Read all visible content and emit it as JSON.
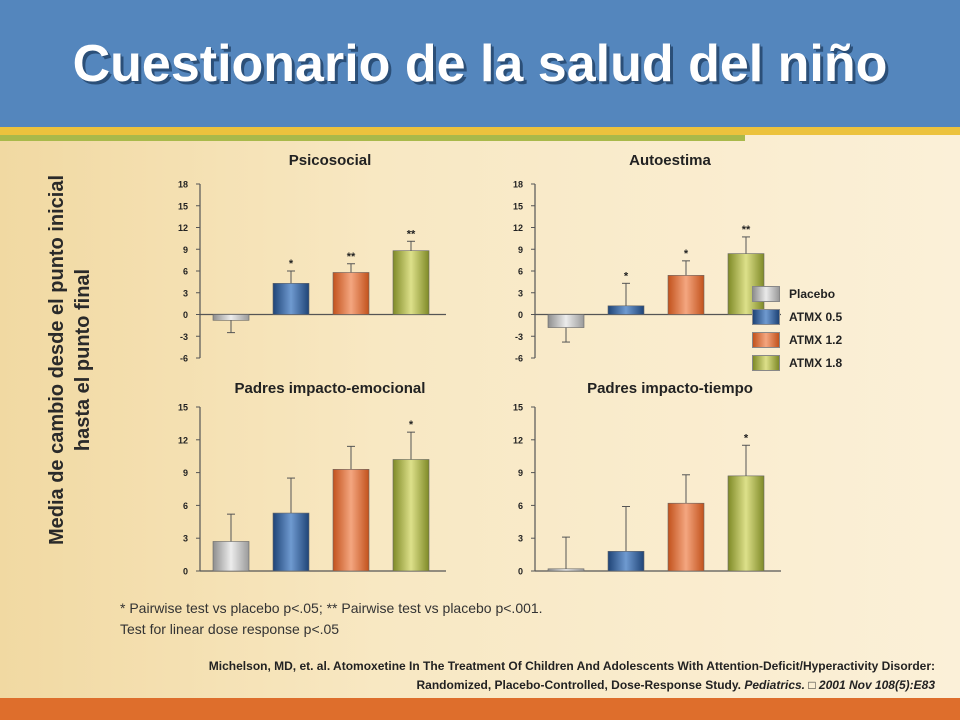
{
  "title": "Cuestionario de la salud del niño",
  "y_label_line1": "Media de cambio desde el punto inicial",
  "y_label_line2": "hasta el punto final",
  "legend": [
    {
      "label": "Placebo",
      "color": "#b9b9b9"
    },
    {
      "label": "ATMX 0.5",
      "color": "#2f5f9a"
    },
    {
      "label": "ATMX 1.2",
      "color": "#e0703a"
    },
    {
      "label": "ATMX 1.8",
      "color": "#a7b247"
    }
  ],
  "chart_data": [
    {
      "type": "bar",
      "title": "Psicosocial",
      "series_names": [
        "Placebo",
        "ATMX 0.5",
        "ATMX 1.2",
        "ATMX 1.8"
      ],
      "values": [
        -0.8,
        4.3,
        5.8,
        8.8
      ],
      "error_upper": [
        -2.5,
        6,
        7,
        10.1
      ],
      "significance": [
        "",
        "*",
        "**",
        "**"
      ],
      "yticks": [
        "18",
        "15",
        "12",
        "9",
        "6",
        "3",
        "0",
        "-3",
        "-6"
      ],
      "ylim": [
        -6,
        18
      ]
    },
    {
      "type": "bar",
      "title": "Autoestima",
      "series_names": [
        "Placebo",
        "ATMX 0.5",
        "ATMX 1.2",
        "ATMX 1.8"
      ],
      "values": [
        -1.8,
        1.2,
        5.4,
        8.4
      ],
      "error_upper": [
        -3.8,
        4.3,
        7.4,
        10.7
      ],
      "significance": [
        "",
        "*",
        "*",
        "**"
      ],
      "yticks": [
        "18",
        "15",
        "12",
        "9",
        "6",
        "3",
        "0",
        "-3",
        "-6"
      ],
      "ylim": [
        -6,
        18
      ]
    },
    {
      "type": "bar",
      "title": "Padres impacto-emocional",
      "series_names": [
        "Placebo",
        "ATMX 0.5",
        "ATMX 1.2",
        "ATMX 1.8"
      ],
      "values": [
        2.7,
        5.3,
        9.3,
        10.2
      ],
      "error_upper": [
        5.2,
        8.5,
        11.4,
        12.7
      ],
      "significance": [
        "",
        "",
        "",
        "*"
      ],
      "yticks": [
        "15",
        "12",
        "9",
        "6",
        "3",
        "0"
      ],
      "ylim": [
        0,
        15
      ]
    },
    {
      "type": "bar",
      "title": "Padres impacto-tiempo",
      "series_names": [
        "Placebo",
        "ATMX 0.5",
        "ATMX 1.2",
        "ATMX 1.8"
      ],
      "values": [
        0.2,
        1.8,
        6.2,
        8.7
      ],
      "error_upper": [
        3.1,
        5.9,
        8.8,
        11.5
      ],
      "significance": [
        "",
        "",
        "",
        "*"
      ],
      "yticks": [
        "15",
        "12",
        "9",
        "6",
        "3",
        "0"
      ],
      "ylim": [
        0,
        15
      ]
    }
  ],
  "footnote_line1": "* Pairwise test vs placebo p<.05; ** Pairwise test vs placebo p<.001.",
  "footnote_line2": "Test for linear dose response p<.05",
  "citation_line1": "Michelson, MD, et. al.  Atomoxetine In The Treatment Of Children And Adolescents With Attention-Deficit/Hyperactivity Disorder:",
  "citation_line2_normal": "Randomized, Placebo-Controlled, Dose-Response Study. ",
  "citation_line2_italic": "Pediatrics. □ 2001 Nov 108(5):E83"
}
